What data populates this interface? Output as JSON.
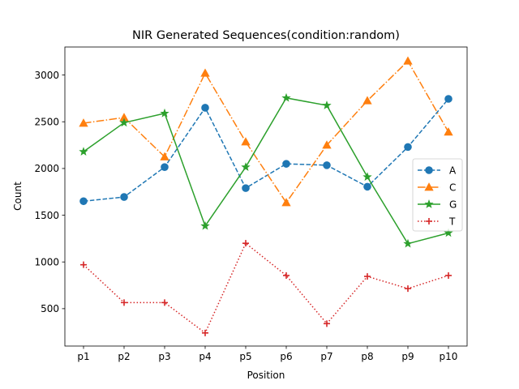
{
  "chart_data": {
    "type": "line",
    "title": "NIR Generated Sequences(condition:random)",
    "xlabel": "Position",
    "ylabel": "Count",
    "categories": [
      "p1",
      "p2",
      "p3",
      "p4",
      "p5",
      "p6",
      "p7",
      "p8",
      "p9",
      "p10"
    ],
    "y_ticks": [
      500,
      1000,
      1500,
      2000,
      2500,
      3000
    ],
    "ylim": [
      100,
      3300
    ],
    "grid": false,
    "legend_position": "center-right",
    "series": [
      {
        "name": "A",
        "color": "#1f77b4",
        "line_style": "dashed",
        "marker": "circle",
        "values": [
          1650,
          1695,
          2015,
          2650,
          1790,
          2050,
          2035,
          1805,
          2230,
          2745
        ]
      },
      {
        "name": "C",
        "color": "#ff7f0e",
        "line_style": "dashdot",
        "marker": "triangle",
        "values": [
          2485,
          2545,
          2125,
          3020,
          2285,
          1635,
          2250,
          2725,
          3150,
          2390
        ]
      },
      {
        "name": "G",
        "color": "#2ca02c",
        "line_style": "solid",
        "marker": "star",
        "values": [
          2180,
          2490,
          2590,
          1385,
          2015,
          2755,
          2675,
          1910,
          1195,
          1310
        ]
      },
      {
        "name": "T",
        "color": "#d62728",
        "line_style": "dotted",
        "marker": "plus",
        "values": [
          970,
          565,
          565,
          240,
          1200,
          855,
          340,
          845,
          715,
          855
        ]
      }
    ]
  }
}
